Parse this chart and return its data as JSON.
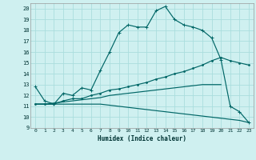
{
  "xlabel": "Humidex (Indice chaleur)",
  "bg_color": "#cff0f0",
  "grid_color": "#aadddd",
  "line_color": "#006666",
  "xlim": [
    -0.5,
    23.5
  ],
  "ylim": [
    9,
    20.5
  ],
  "yticks": [
    9,
    10,
    11,
    12,
    13,
    14,
    15,
    16,
    17,
    18,
    19,
    20
  ],
  "xticks": [
    0,
    1,
    2,
    3,
    4,
    5,
    6,
    7,
    8,
    9,
    10,
    11,
    12,
    13,
    14,
    15,
    16,
    17,
    18,
    19,
    20,
    21,
    22,
    23
  ],
  "curve1_x": [
    0,
    1,
    2,
    3,
    4,
    5,
    6,
    7,
    8,
    9,
    10,
    11,
    12,
    13,
    14,
    15,
    16,
    17,
    18,
    19,
    20,
    21,
    22,
    23
  ],
  "curve1_y": [
    12.8,
    11.5,
    11.2,
    12.2,
    12.0,
    12.7,
    12.5,
    14.3,
    16.0,
    17.8,
    18.5,
    18.3,
    18.3,
    19.8,
    20.2,
    19.0,
    18.5,
    18.3,
    18.0,
    17.3,
    15.3,
    11.0,
    10.5,
    9.5
  ],
  "curve2_x": [
    0,
    1,
    2,
    3,
    4,
    5,
    6,
    7,
    8,
    9,
    10,
    11,
    12,
    13,
    14,
    15,
    16,
    17,
    18,
    19,
    20,
    21,
    22,
    23
  ],
  "curve2_y": [
    11.2,
    11.2,
    11.2,
    11.5,
    11.7,
    11.7,
    12.0,
    12.2,
    12.5,
    12.6,
    12.8,
    13.0,
    13.2,
    13.5,
    13.7,
    14.0,
    14.2,
    14.5,
    14.8,
    15.2,
    15.5,
    15.2,
    15.0,
    14.8
  ],
  "curve3_x": [
    0,
    1,
    2,
    3,
    4,
    5,
    6,
    7,
    8,
    9,
    10,
    11,
    12,
    13,
    14,
    15,
    16,
    17,
    18,
    19,
    20,
    21,
    22,
    23
  ],
  "curve3_y": [
    11.2,
    11.2,
    11.2,
    11.2,
    11.2,
    11.2,
    11.2,
    11.2,
    11.1,
    11.0,
    10.9,
    10.8,
    10.7,
    10.6,
    10.5,
    10.4,
    10.3,
    10.2,
    10.1,
    10.0,
    9.9,
    9.8,
    9.7,
    9.5
  ],
  "curve4_x": [
    0,
    1,
    2,
    3,
    4,
    5,
    6,
    7,
    8,
    9,
    10,
    11,
    12,
    13,
    14,
    15,
    16,
    17,
    18,
    19,
    20
  ],
  "curve4_y": [
    11.2,
    11.2,
    11.3,
    11.4,
    11.5,
    11.6,
    11.7,
    11.8,
    12.0,
    12.1,
    12.2,
    12.3,
    12.4,
    12.5,
    12.6,
    12.7,
    12.8,
    12.9,
    13.0,
    13.0,
    13.0
  ]
}
